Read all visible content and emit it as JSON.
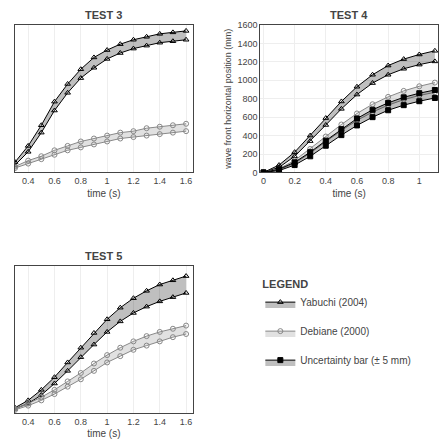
{
  "chart_data": [
    {
      "type": "line",
      "title": "TEST 3",
      "xlabel": "time (s)",
      "xlim": [
        0.3,
        1.65
      ],
      "xticks": [
        0.4,
        0.6,
        0.8,
        1,
        1.2,
        1.4,
        1.6
      ],
      "ylim": [
        0,
        1.0
      ],
      "yticks": [],
      "grid": true,
      "tick_labels": "x",
      "x": [
        0.3,
        0.4,
        0.5,
        0.6,
        0.7,
        0.8,
        0.9,
        1.0,
        1.1,
        1.2,
        1.3,
        1.4,
        1.5,
        1.6
      ],
      "series": [
        {
          "name": "Yabuchi (2004)",
          "color": "#000000",
          "marker": "triangle-up-open",
          "upper": [
            0.07,
            0.18,
            0.32,
            0.48,
            0.6,
            0.7,
            0.78,
            0.83,
            0.87,
            0.9,
            0.92,
            0.94,
            0.95,
            0.96
          ],
          "lower": [
            0.05,
            0.14,
            0.27,
            0.42,
            0.54,
            0.64,
            0.71,
            0.77,
            0.81,
            0.84,
            0.86,
            0.88,
            0.89,
            0.9
          ]
        },
        {
          "name": "Debiane (2000)",
          "color": "#888888",
          "marker": "circle-open",
          "upper": [
            0.04,
            0.08,
            0.11,
            0.15,
            0.18,
            0.21,
            0.23,
            0.25,
            0.27,
            0.28,
            0.3,
            0.31,
            0.32,
            0.33
          ],
          "lower": [
            0.03,
            0.06,
            0.09,
            0.12,
            0.15,
            0.17,
            0.19,
            0.21,
            0.23,
            0.24,
            0.25,
            0.26,
            0.27,
            0.28
          ]
        }
      ]
    },
    {
      "type": "line",
      "title": "TEST 4",
      "xlabel": "time (s)",
      "ylabel": "wave front horizontal position (mm)",
      "xlim": [
        -0.02,
        1.12
      ],
      "xticks": [
        0,
        0.2,
        0.4,
        0.6,
        0.8,
        1
      ],
      "ylim": [
        0,
        1600
      ],
      "yticks": [
        0,
        200,
        400,
        600,
        800,
        1000,
        1200,
        1400,
        1600
      ],
      "grid": true,
      "x": [
        0,
        0.1,
        0.2,
        0.3,
        0.4,
        0.5,
        0.6,
        0.7,
        0.8,
        0.9,
        1.0,
        1.1
      ],
      "series": [
        {
          "name": "Yabuchi (2004)",
          "color": "#000000",
          "marker": "triangle-up-open",
          "upper": [
            0,
            80,
            220,
            400,
            590,
            770,
            930,
            1060,
            1160,
            1230,
            1280,
            1320
          ],
          "lower": [
            0,
            55,
            175,
            340,
            515,
            690,
            845,
            970,
            1060,
            1125,
            1170,
            1205
          ]
        },
        {
          "name": "Debiane (2000)",
          "color": "#888888",
          "marker": "circle-open",
          "upper": [
            0,
            40,
            130,
            255,
            390,
            520,
            640,
            740,
            820,
            885,
            935,
            975
          ],
          "lower": [
            0,
            28,
            100,
            210,
            335,
            455,
            565,
            655,
            730,
            790,
            835,
            870
          ]
        },
        {
          "name": "Uncertainty bar (± 5 mm)",
          "color": "#000000",
          "marker": "square",
          "upper": [
            0,
            35,
            110,
            220,
            345,
            470,
            585,
            680,
            755,
            815,
            860,
            895
          ],
          "lower": [
            0,
            20,
            80,
            175,
            290,
            405,
            510,
            600,
            675,
            730,
            773,
            808
          ]
        }
      ]
    },
    {
      "type": "line",
      "title": "TEST 5",
      "xlabel": "time (s)",
      "xlim": [
        0.3,
        1.65
      ],
      "xticks": [
        0.4,
        0.6,
        0.8,
        1,
        1.2,
        1.4,
        1.6
      ],
      "ylim": [
        0,
        1.4
      ],
      "yticks": [],
      "grid": true,
      "tick_labels": "x",
      "x": [
        0.3,
        0.4,
        0.5,
        0.6,
        0.7,
        0.8,
        0.9,
        1.0,
        1.1,
        1.2,
        1.3,
        1.4,
        1.5,
        1.6
      ],
      "series": [
        {
          "name": "Yabuchi (2004)",
          "color": "#000000",
          "marker": "triangle-up-open",
          "upper": [
            0.05,
            0.12,
            0.22,
            0.34,
            0.48,
            0.62,
            0.76,
            0.89,
            1.0,
            1.09,
            1.16,
            1.22,
            1.26,
            1.3
          ],
          "lower": [
            0.04,
            0.09,
            0.17,
            0.28,
            0.4,
            0.53,
            0.65,
            0.77,
            0.87,
            0.95,
            1.01,
            1.06,
            1.1,
            1.14
          ]
        },
        {
          "name": "Debiane (2000)",
          "color": "#888888",
          "marker": "circle-open",
          "upper": [
            0.04,
            0.09,
            0.15,
            0.22,
            0.3,
            0.38,
            0.47,
            0.55,
            0.62,
            0.68,
            0.73,
            0.77,
            0.8,
            0.83
          ],
          "lower": [
            0.03,
            0.07,
            0.12,
            0.18,
            0.25,
            0.32,
            0.4,
            0.48,
            0.54,
            0.6,
            0.64,
            0.68,
            0.72,
            0.75
          ]
        }
      ]
    }
  ],
  "legend_title": "LEGEND"
}
